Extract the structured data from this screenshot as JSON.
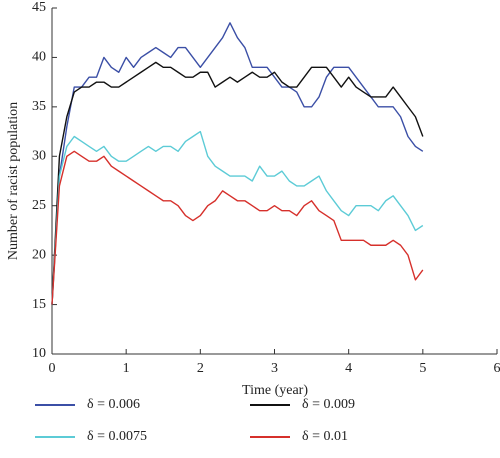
{
  "chart_data": {
    "type": "line",
    "x_label": "Time (year)",
    "y_label": "Number of racist population",
    "x": [
      0,
      0.1,
      0.2,
      0.3,
      0.4,
      0.5,
      0.6,
      0.7,
      0.8,
      0.9,
      1,
      1.1,
      1.2,
      1.3,
      1.4,
      1.5,
      1.6,
      1.7,
      1.8,
      1.9,
      2,
      2.1,
      2.2,
      2.3,
      2.4,
      2.5,
      2.6,
      2.7,
      2.8,
      2.9,
      3,
      3.1,
      3.2,
      3.3,
      3.4,
      3.5,
      3.6,
      3.7,
      3.8,
      3.9,
      4,
      4.1,
      4.2,
      4.3,
      4.4,
      4.5,
      4.6,
      4.7,
      4.8,
      4.9,
      5
    ],
    "series": [
      {
        "name": "δ = 0.006",
        "color": "#3b4fa6",
        "values": [
          15,
          28,
          33,
          37,
          37,
          38,
          38,
          40,
          39,
          38.5,
          40,
          39,
          40,
          40.5,
          41,
          40.5,
          40,
          41,
          41,
          40,
          39,
          40,
          41,
          42,
          43.5,
          42,
          41,
          39,
          39,
          39,
          38,
          37,
          37,
          36.5,
          35,
          35,
          36,
          38,
          39,
          39,
          39,
          38,
          37,
          36,
          35,
          35,
          35,
          34,
          32,
          31,
          30.5
        ]
      },
      {
        "name": "δ = 0.009",
        "color": "#111111",
        "values": [
          15,
          30,
          34,
          36.5,
          37,
          37,
          37.5,
          37.5,
          37,
          37,
          37.5,
          38,
          38.5,
          39,
          39.5,
          39,
          39,
          38.5,
          38,
          38,
          38.5,
          38.5,
          37,
          37.5,
          38,
          37.5,
          38,
          38.5,
          38,
          38,
          38.5,
          37.5,
          37,
          37,
          38,
          39,
          39,
          39,
          38,
          37,
          38,
          37,
          36.5,
          36,
          36,
          36,
          37,
          36,
          35,
          34,
          32
        ]
      },
      {
        "name": "δ = 0.0075",
        "color": "#5ccbd6",
        "values": [
          15,
          28,
          31,
          32,
          31.5,
          31,
          30.5,
          31,
          30,
          29.5,
          29.5,
          30,
          30.5,
          31,
          30.5,
          31,
          31,
          30.5,
          31.5,
          32,
          32.5,
          30,
          29,
          28.5,
          28,
          28,
          28,
          27.5,
          29,
          28,
          28,
          28.5,
          27.5,
          27,
          27,
          27.5,
          28,
          26.5,
          25.5,
          24.5,
          24,
          25,
          25,
          25,
          24.5,
          25.5,
          26,
          25,
          24,
          22.5,
          23
        ]
      },
      {
        "name": "δ = 0.01",
        "color": "#d6302b",
        "values": [
          15,
          27,
          30,
          30.5,
          30,
          29.5,
          29.5,
          30,
          29,
          28.5,
          28,
          27.5,
          27,
          26.5,
          26,
          25.5,
          25.5,
          25,
          24,
          23.5,
          24,
          25,
          25.5,
          26.5,
          26,
          25.5,
          25.5,
          25,
          24.5,
          24.5,
          25,
          24.5,
          24.5,
          24,
          25,
          25.5,
          24.5,
          24,
          23.5,
          21.5,
          21.5,
          21.5,
          21.5,
          21,
          21,
          21,
          21.5,
          21,
          20,
          17.5,
          18.5
        ]
      }
    ],
    "xlim": [
      0,
      6
    ],
    "xticks": [
      0,
      1,
      2,
      3,
      4,
      5,
      6
    ],
    "ylim": [
      10,
      45
    ],
    "yticks": [
      10,
      15,
      20,
      25,
      30,
      35,
      40,
      45
    ]
  }
}
